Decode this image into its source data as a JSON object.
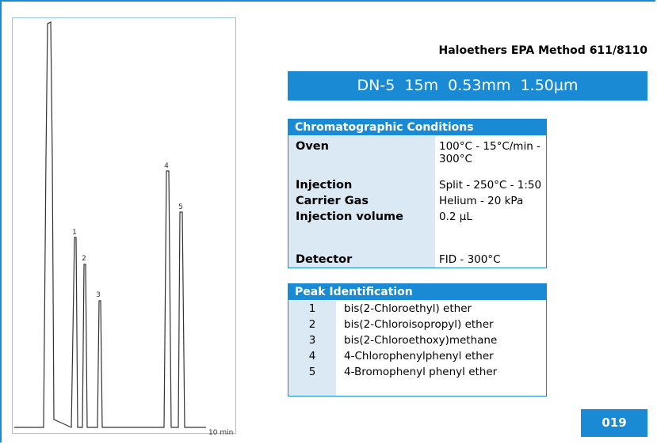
{
  "chromatogram": {
    "axis_label": "10 min",
    "peak_labels": [
      "1",
      "2",
      "3",
      "4",
      "5"
    ]
  },
  "title": "Haloethers EPA Method 611/8110",
  "column": "DN-5  15m  0.53mm  1.50µm",
  "conditions": {
    "header": "Chromatographic Conditions",
    "rows": [
      [
        "Oven",
        "100°C - 15°C/min - 300°C"
      ],
      [
        "Injection",
        "Split - 250°C - 1:50"
      ],
      [
        "Carrier Gas",
        "Helium - 20 kPa"
      ],
      [
        "Injection volume",
        "0.2 µL"
      ],
      [
        "Detector",
        "FID - 300°C"
      ]
    ]
  },
  "peaks": {
    "header": "Peak Identification",
    "rows": [
      [
        "1",
        "bis(2-Chloroethyl) ether"
      ],
      [
        "2",
        "bis(2-Chloroisopropyl) ether"
      ],
      [
        "3",
        "bis(2-Chloroethoxy)methane"
      ],
      [
        "4",
        "4-Chlorophenylphenyl ether"
      ],
      [
        "5",
        "4-Bromophenyl phenyl ether"
      ]
    ]
  },
  "code": "019"
}
